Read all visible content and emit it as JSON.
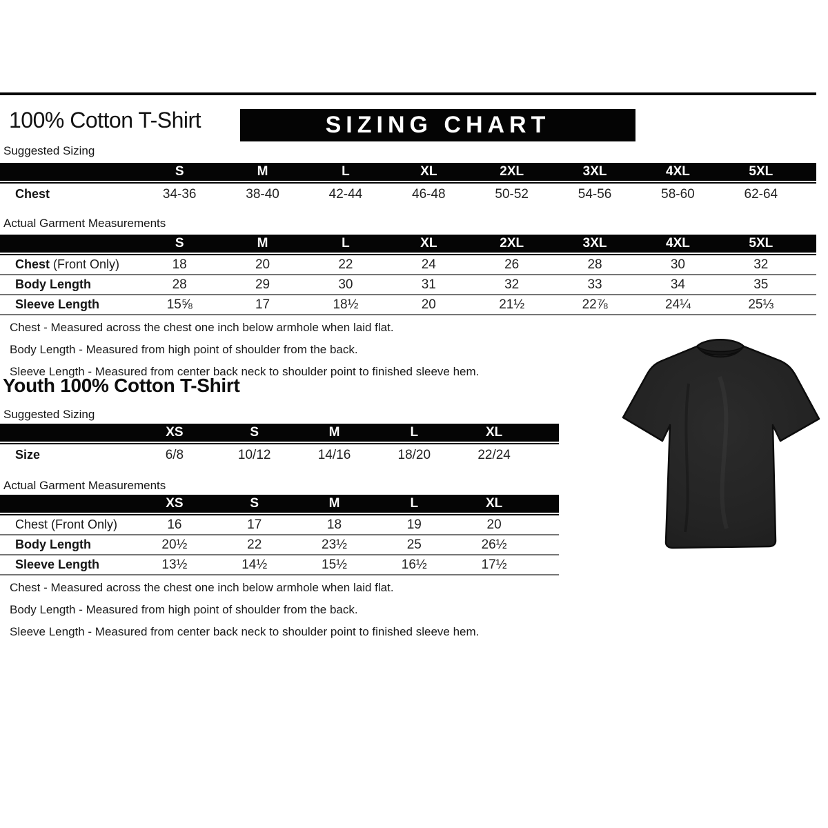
{
  "header": {
    "title": "100% Cotton T-Shirt",
    "banner": "SIZING CHART"
  },
  "adult": {
    "suggested_label": "Suggested Sizing",
    "suggested": {
      "columns": [
        "S",
        "M",
        "L",
        "XL",
        "2XL",
        "3XL",
        "4XL",
        "5XL"
      ],
      "rows": [
        {
          "label": "Chest",
          "suffix": "",
          "bold": true,
          "values": [
            "34-36",
            "38-40",
            "42-44",
            "46-48",
            "50-52",
            "54-56",
            "58-60",
            "62-64"
          ]
        }
      ]
    },
    "actual_label": "Actual Garment Measurements",
    "actual": {
      "columns": [
        "S",
        "M",
        "L",
        "XL",
        "2XL",
        "3XL",
        "4XL",
        "5XL"
      ],
      "rows": [
        {
          "label": "Chest",
          "suffix": " (Front Only)",
          "bold": true,
          "values": [
            "18",
            "20",
            "22",
            "24",
            "26",
            "28",
            "30",
            "32"
          ]
        },
        {
          "label": "Body Length",
          "suffix": "",
          "bold": true,
          "values": [
            "28",
            "29",
            "30",
            "31",
            "32",
            "33",
            "34",
            "35"
          ]
        },
        {
          "label": "Sleeve Length",
          "suffix": "",
          "bold": true,
          "values": [
            "15⅝",
            "17",
            "18½",
            "20",
            "21½",
            "22⅞",
            "24¼",
            "25⅓"
          ]
        }
      ]
    },
    "notes": [
      "Chest - Measured across the chest one inch below armhole when laid flat.",
      "Body Length - Measured from high point of shoulder from the back.",
      "Sleeve Length - Measured from center back neck to shoulder point to finished sleeve hem."
    ]
  },
  "youth": {
    "title": "Youth 100% Cotton T-Shirt",
    "suggested_label": "Suggested Sizing",
    "suggested": {
      "columns": [
        "XS",
        "S",
        "M",
        "L",
        "XL"
      ],
      "rows": [
        {
          "label": "Size",
          "suffix": "",
          "bold": true,
          "values": [
            "6/8",
            "10/12",
            "14/16",
            "18/20",
            "22/24"
          ]
        }
      ]
    },
    "actual_label": "Actual Garment Measurements",
    "actual": {
      "columns": [
        "XS",
        "S",
        "M",
        "L",
        "XL"
      ],
      "rows": [
        {
          "label": "Chest (Front Only)",
          "suffix": "",
          "bold": false,
          "values": [
            "16",
            "17",
            "18",
            "19",
            "20"
          ]
        },
        {
          "label": "Body Length",
          "suffix": "",
          "bold": true,
          "values": [
            "20½",
            "22",
            "23½",
            "25",
            "26½"
          ]
        },
        {
          "label": "Sleeve Length",
          "suffix": "",
          "bold": true,
          "values": [
            "13½",
            "14½",
            "15½",
            "16½",
            "17½"
          ]
        }
      ]
    },
    "notes": [
      "Chest - Measured across the chest one inch below armhole when laid flat.",
      "Body Length - Measured from high point of shoulder from the back.",
      "Sleeve Length - Measured from center back neck to shoulder point to finished sleeve hem."
    ]
  },
  "image": {
    "alt": "black short sleeve t-shirt, front view"
  },
  "colors": {
    "banner_bg": "#040404",
    "banner_text": "#ffffff",
    "table_header_bg": "#050505",
    "row_separator": "#757575",
    "text": "#1a1a1a",
    "tshirt_body": "#242424",
    "background": "#ffffff"
  }
}
